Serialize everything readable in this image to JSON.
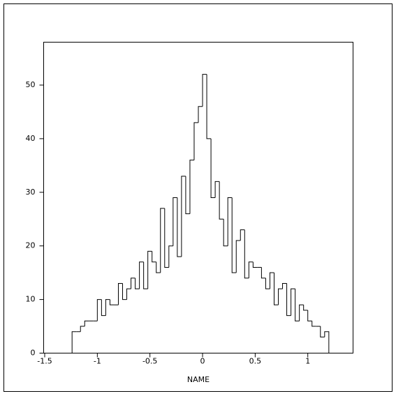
{
  "chart_data": {
    "type": "histogram",
    "x_label": "NAME",
    "bins": [
      -1.24,
      -1.2,
      -1.16,
      -1.12,
      -1.08,
      -1.04,
      -1.0,
      -0.96,
      -0.92,
      -0.88,
      -0.84,
      -0.8,
      -0.76,
      -0.72,
      -0.68,
      -0.64,
      -0.6,
      -0.56,
      -0.52,
      -0.48,
      -0.44,
      -0.4,
      -0.36,
      -0.32,
      -0.28,
      -0.24,
      -0.2,
      -0.16,
      -0.12,
      -0.08,
      -0.04,
      0.0,
      0.04,
      0.08,
      0.12,
      0.16,
      0.2,
      0.24,
      0.28,
      0.32,
      0.36,
      0.4,
      0.44,
      0.48,
      0.52,
      0.56,
      0.6,
      0.64,
      0.68,
      0.72,
      0.76,
      0.8,
      0.84,
      0.88,
      0.92,
      0.96,
      1.0,
      1.04,
      1.08,
      1.12,
      1.16,
      1.2
    ],
    "values": [
      4,
      4,
      5,
      6,
      6,
      6,
      10,
      7,
      10,
      9,
      9,
      13,
      10,
      12,
      14,
      12,
      17,
      12,
      19,
      17,
      15,
      27,
      16,
      20,
      29,
      18,
      33,
      26,
      36,
      43,
      46,
      52,
      40,
      29,
      32,
      25,
      20,
      29,
      15,
      21,
      23,
      14,
      17,
      16,
      16,
      14,
      12,
      15,
      9,
      12,
      13,
      7,
      12,
      6,
      9,
      8,
      6,
      5,
      5,
      3,
      4
    ],
    "color": "#000000",
    "xlim": [
      -1.51,
      1.43
    ],
    "xticks": [
      -1.5,
      -1,
      -0.5,
      0,
      0.5,
      1
    ],
    "ylim": [
      0,
      58
    ],
    "yticks": [
      0,
      10,
      20,
      30,
      40,
      50
    ]
  }
}
